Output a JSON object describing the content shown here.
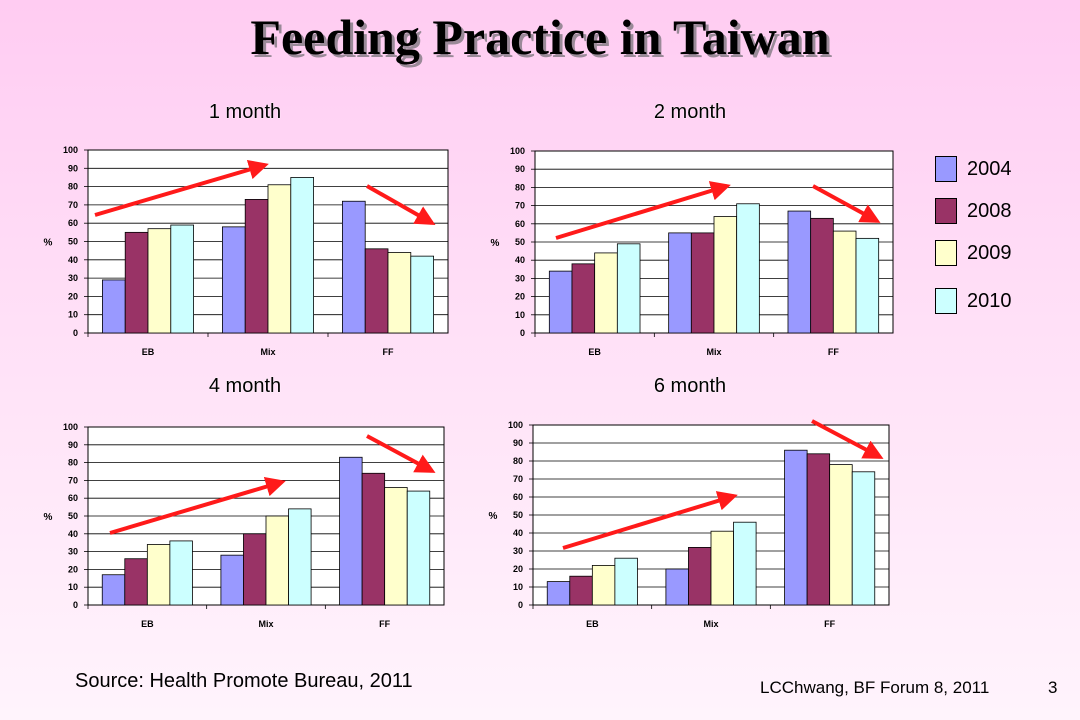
{
  "slide": {
    "title": "Feeding Practice in Taiwan",
    "source": "Source: Health Promote Bureau, 2011",
    "footer": "LCChwang, BF Forum 8, 2011",
    "page_number": "3"
  },
  "legend": {
    "items": [
      {
        "label": "2004",
        "color": "#9999ff"
      },
      {
        "label": "2008",
        "color": "#993366"
      },
      {
        "label": "2009",
        "color": "#ffffcc"
      },
      {
        "label": "2010",
        "color": "#ccffff"
      }
    ]
  },
  "chart_data": [
    {
      "type": "bar",
      "title": "1 month",
      "ylabel": "%",
      "ylim": [
        0,
        100
      ],
      "yticks": [
        "0",
        "10",
        "20",
        "30",
        "40",
        "50",
        "60",
        "70",
        "80",
        "90",
        "100"
      ],
      "categories": [
        "EB",
        "Mix",
        "FF"
      ],
      "series": [
        {
          "name": "2004",
          "values": [
            29,
            58,
            72
          ]
        },
        {
          "name": "2008",
          "values": [
            55,
            73,
            46
          ]
        },
        {
          "name": "2009",
          "values": [
            57,
            81,
            44
          ]
        },
        {
          "name": "2010",
          "values": [
            59,
            85,
            42
          ]
        }
      ],
      "grid": true,
      "trend_arrows": [
        "up",
        "down"
      ]
    },
    {
      "type": "bar",
      "title": "2 month",
      "ylabel": "%",
      "ylim": [
        0,
        100
      ],
      "yticks": [
        "0",
        "10",
        "20",
        "30",
        "40",
        "50",
        "60",
        "70",
        "80",
        "90",
        "100"
      ],
      "categories": [
        "EB",
        "Mix",
        "FF"
      ],
      "series": [
        {
          "name": "2004",
          "values": [
            34,
            55,
            67
          ]
        },
        {
          "name": "2008",
          "values": [
            38,
            55,
            63
          ]
        },
        {
          "name": "2009",
          "values": [
            44,
            64,
            56
          ]
        },
        {
          "name": "2010",
          "values": [
            49,
            71,
            52
          ]
        }
      ],
      "grid": true,
      "trend_arrows": [
        "up",
        "down"
      ]
    },
    {
      "type": "bar",
      "title": "4 month",
      "ylabel": "%",
      "ylim": [
        0,
        100
      ],
      "yticks": [
        "0",
        "10",
        "20",
        "30",
        "40",
        "50",
        "60",
        "70",
        "80",
        "90",
        "100"
      ],
      "categories": [
        "EB",
        "Mix",
        "FF"
      ],
      "series": [
        {
          "name": "2004",
          "values": [
            17,
            28,
            83
          ]
        },
        {
          "name": "2008",
          "values": [
            26,
            40,
            74
          ]
        },
        {
          "name": "2009",
          "values": [
            34,
            50,
            66
          ]
        },
        {
          "name": "2010",
          "values": [
            36,
            54,
            64
          ]
        }
      ],
      "grid": true,
      "trend_arrows": [
        "up",
        "down"
      ]
    },
    {
      "type": "bar",
      "title": "6 month",
      "ylabel": "%",
      "ylim": [
        0,
        100
      ],
      "yticks": [
        "0",
        "10",
        "20",
        "30",
        "40",
        "50",
        "60",
        "70",
        "80",
        "90",
        "100"
      ],
      "categories": [
        "EB",
        "Mix",
        "FF"
      ],
      "series": [
        {
          "name": "2004",
          "values": [
            13,
            20,
            86
          ]
        },
        {
          "name": "2008",
          "values": [
            16,
            32,
            84
          ]
        },
        {
          "name": "2009",
          "values": [
            22,
            41,
            78
          ]
        },
        {
          "name": "2010",
          "values": [
            26,
            46,
            74
          ]
        }
      ],
      "grid": true,
      "trend_arrows": [
        "up",
        "down"
      ]
    }
  ]
}
